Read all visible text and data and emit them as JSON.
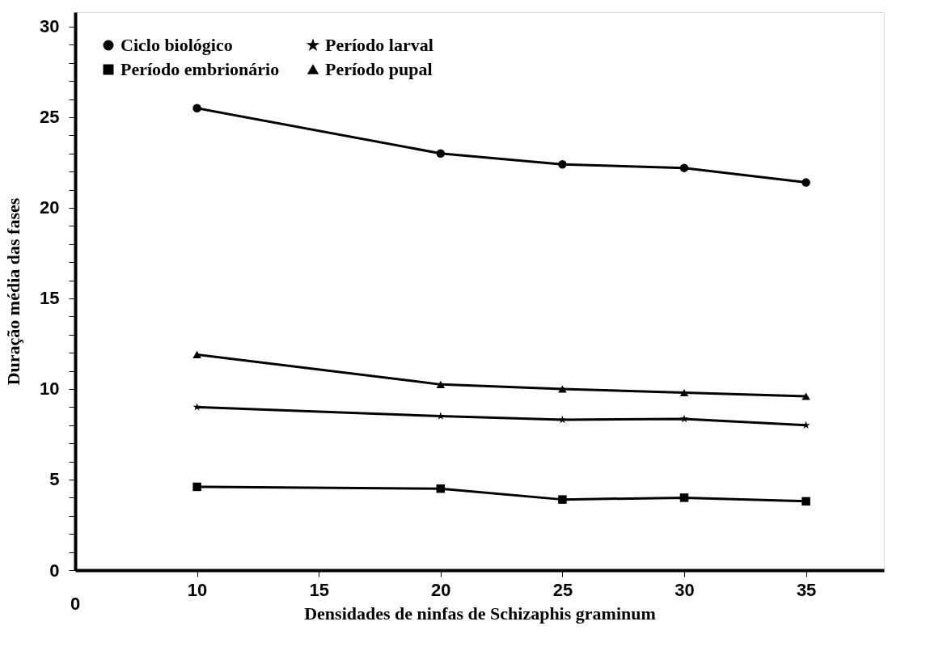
{
  "chart_data": {
    "type": "line",
    "xlabel": "Densidades de ninfas de Schizaphis graminum",
    "ylabel": "Duração média das fases",
    "x": [
      10,
      20,
      25,
      30,
      35
    ],
    "series": [
      {
        "name": "Ciclo biológico",
        "color": "#000000",
        "marker": "circle",
        "values": [
          25.5,
          23.0,
          22.4,
          22.2,
          21.4
        ]
      },
      {
        "name": "Período embrionário",
        "color": "#000000",
        "marker": "square",
        "values": [
          4.6,
          4.5,
          3.9,
          4.0,
          3.8
        ]
      },
      {
        "name": "Período larval",
        "color": "#000000",
        "marker": "star",
        "values": [
          9.0,
          8.5,
          8.3,
          8.35,
          8.0
        ]
      },
      {
        "name": "Período pupal",
        "color": "#000000",
        "marker": "triangle",
        "values": [
          11.9,
          10.25,
          10.0,
          9.8,
          9.6
        ]
      }
    ],
    "xlim": [
      5,
      38.2
    ],
    "xticks": [
      10,
      15,
      20,
      25,
      30,
      35
    ],
    "ylim": [
      0,
      30.8
    ],
    "yticks": [
      0,
      {
        "value": 1,
        "label": null
      },
      {
        "value": 2,
        "label": null
      },
      {
        "value": 3,
        "label": null
      },
      {
        "value": 4,
        "label": null
      },
      5,
      {
        "value": 6,
        "label": null
      },
      {
        "value": 7,
        "label": null
      },
      {
        "value": 8,
        "label": null
      },
      {
        "value": 9,
        "label": null
      },
      10,
      {
        "value": 11,
        "label": null
      },
      {
        "value": 12,
        "label": null
      },
      {
        "value": 13,
        "label": null
      },
      {
        "value": 14,
        "label": null
      },
      15,
      {
        "value": 16,
        "label": null
      },
      {
        "value": 17,
        "label": null
      },
      {
        "value": 18,
        "label": null
      },
      {
        "value": 19,
        "label": null
      },
      20,
      {
        "value": 21,
        "label": null
      },
      {
        "value": 22,
        "label": null
      },
      {
        "value": 23,
        "label": null
      },
      {
        "value": 24,
        "label": null
      },
      25,
      {
        "value": 26,
        "label": null
      },
      {
        "value": 27,
        "label": null
      },
      {
        "value": 28,
        "label": null
      },
      {
        "value": 29,
        "label": null
      },
      30
    ],
    "annotations": [
      "0"
    ],
    "legend": "top left",
    "grid": false,
    "line_style": "solid"
  }
}
